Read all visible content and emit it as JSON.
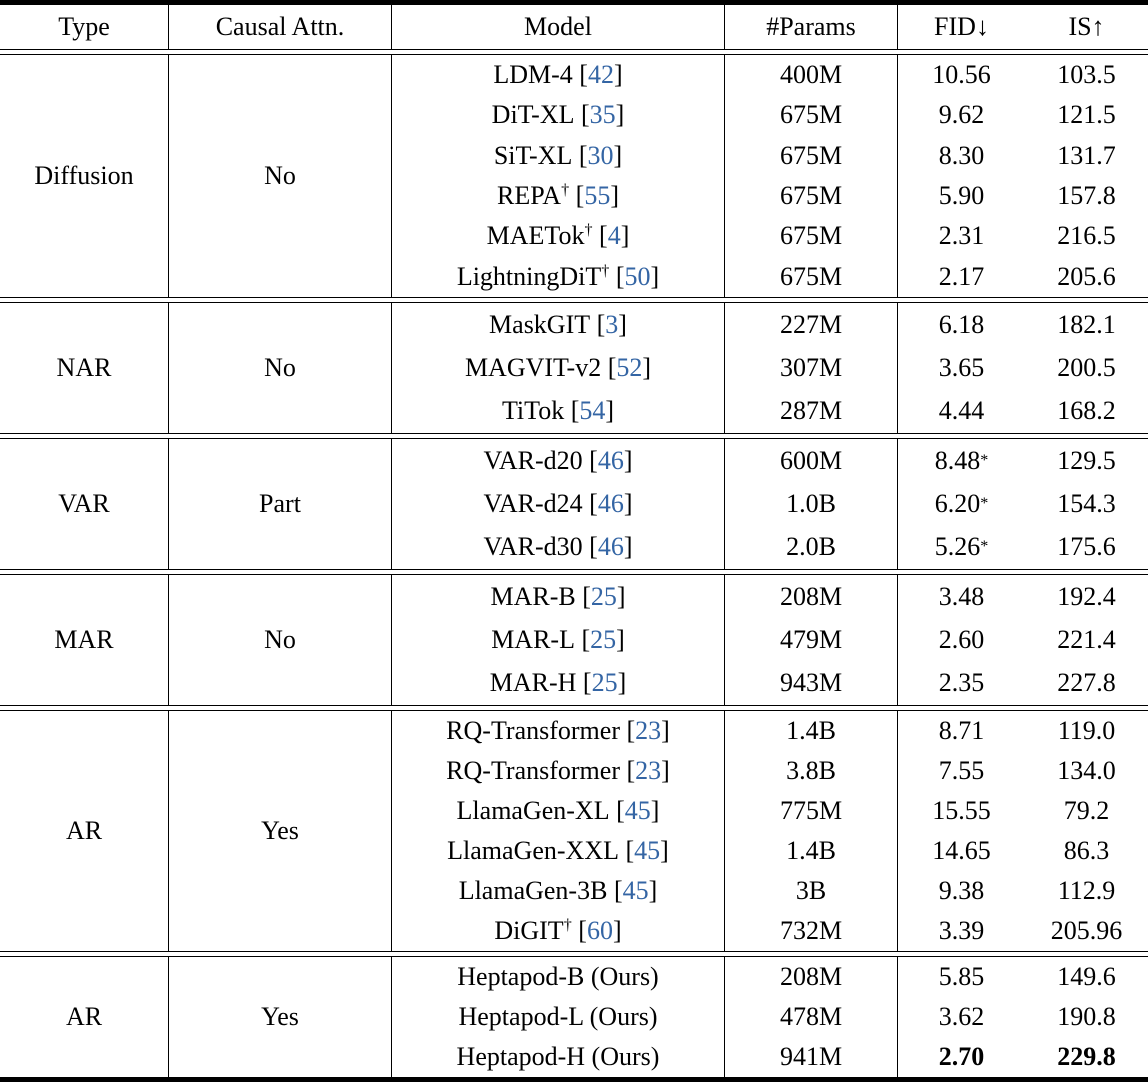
{
  "table": {
    "header": {
      "columns": [
        "Type",
        "Causal Attn.",
        "Model",
        "#Params",
        "FID↓",
        "IS↑"
      ]
    },
    "colors": {
      "citation_blue": "#3465a4",
      "text": "#000000",
      "rule": "#000000",
      "background": "#ffffff"
    },
    "sections": [
      {
        "type": "Diffusion",
        "causal_attn": "No",
        "rows": [
          {
            "model": "LDM-4",
            "dagger": false,
            "cite": "42",
            "params": "400M",
            "fid": "10.56",
            "fid_star": false,
            "fid_bold": false,
            "is": "103.5",
            "is_bold": false
          },
          {
            "model": "DiT-XL",
            "dagger": false,
            "cite": "35",
            "params": "675M",
            "fid": "9.62",
            "fid_star": false,
            "fid_bold": false,
            "is": "121.5",
            "is_bold": false
          },
          {
            "model": "SiT-XL",
            "dagger": false,
            "cite": "30",
            "params": "675M",
            "fid": "8.30",
            "fid_star": false,
            "fid_bold": false,
            "is": "131.7",
            "is_bold": false
          },
          {
            "model": "REPA",
            "dagger": true,
            "cite": "55",
            "params": "675M",
            "fid": "5.90",
            "fid_star": false,
            "fid_bold": false,
            "is": "157.8",
            "is_bold": false
          },
          {
            "model": "MAETok",
            "dagger": true,
            "cite": "4",
            "params": "675M",
            "fid": "2.31",
            "fid_star": false,
            "fid_bold": false,
            "is": "216.5",
            "is_bold": false
          },
          {
            "model": "LightningDiT",
            "dagger": true,
            "cite": "50",
            "params": "675M",
            "fid": "2.17",
            "fid_star": false,
            "fid_bold": false,
            "is": "205.6",
            "is_bold": false
          }
        ]
      },
      {
        "type": "NAR",
        "causal_attn": "No",
        "rows": [
          {
            "model": "MaskGIT",
            "dagger": false,
            "cite": "3",
            "params": "227M",
            "fid": "6.18",
            "fid_star": false,
            "fid_bold": false,
            "is": "182.1",
            "is_bold": false
          },
          {
            "model": "MAGVIT-v2",
            "dagger": false,
            "cite": "52",
            "params": "307M",
            "fid": "3.65",
            "fid_star": false,
            "fid_bold": false,
            "is": "200.5",
            "is_bold": false
          },
          {
            "model": "TiTok",
            "dagger": false,
            "cite": "54",
            "params": "287M",
            "fid": "4.44",
            "fid_star": false,
            "fid_bold": false,
            "is": "168.2",
            "is_bold": false
          }
        ]
      },
      {
        "type": "VAR",
        "causal_attn": "Part",
        "rows": [
          {
            "model": "VAR-d20",
            "dagger": false,
            "cite": "46",
            "params": "600M",
            "fid": "8.48",
            "fid_star": true,
            "fid_bold": false,
            "is": "129.5",
            "is_bold": false
          },
          {
            "model": "VAR-d24",
            "dagger": false,
            "cite": "46",
            "params": "1.0B",
            "fid": "6.20",
            "fid_star": true,
            "fid_bold": false,
            "is": "154.3",
            "is_bold": false
          },
          {
            "model": "VAR-d30",
            "dagger": false,
            "cite": "46",
            "params": "2.0B",
            "fid": "5.26",
            "fid_star": true,
            "fid_bold": false,
            "is": "175.6",
            "is_bold": false
          }
        ]
      },
      {
        "type": "MAR",
        "causal_attn": "No",
        "rows": [
          {
            "model": "MAR-B",
            "dagger": false,
            "cite": "25",
            "params": "208M",
            "fid": "3.48",
            "fid_star": false,
            "fid_bold": false,
            "is": "192.4",
            "is_bold": false
          },
          {
            "model": "MAR-L",
            "dagger": false,
            "cite": "25",
            "params": "479M",
            "fid": "2.60",
            "fid_star": false,
            "fid_bold": false,
            "is": "221.4",
            "is_bold": false
          },
          {
            "model": "MAR-H",
            "dagger": false,
            "cite": "25",
            "params": "943M",
            "fid": "2.35",
            "fid_star": false,
            "fid_bold": false,
            "is": "227.8",
            "is_bold": false
          }
        ]
      },
      {
        "type": "AR",
        "causal_attn": "Yes",
        "rows": [
          {
            "model": "RQ-Transformer",
            "dagger": false,
            "cite": "23",
            "params": "1.4B",
            "fid": "8.71",
            "fid_star": false,
            "fid_bold": false,
            "is": "119.0",
            "is_bold": false
          },
          {
            "model": "RQ-Transformer",
            "dagger": false,
            "cite": "23",
            "params": "3.8B",
            "fid": "7.55",
            "fid_star": false,
            "fid_bold": false,
            "is": "134.0",
            "is_bold": false
          },
          {
            "model": "LlamaGen-XL",
            "dagger": false,
            "cite": "45",
            "params": "775M",
            "fid": "15.55",
            "fid_star": false,
            "fid_bold": false,
            "is": "79.2",
            "is_bold": false
          },
          {
            "model": "LlamaGen-XXL",
            "dagger": false,
            "cite": "45",
            "params": "1.4B",
            "fid": "14.65",
            "fid_star": false,
            "fid_bold": false,
            "is": "86.3",
            "is_bold": false
          },
          {
            "model": "LlamaGen-3B",
            "dagger": false,
            "cite": "45",
            "params": "3B",
            "fid": "9.38",
            "fid_star": false,
            "fid_bold": false,
            "is": "112.9",
            "is_bold": false
          },
          {
            "model": "DiGIT",
            "dagger": true,
            "cite": "60",
            "params": "732M",
            "fid": "3.39",
            "fid_star": false,
            "fid_bold": false,
            "is": "205.96",
            "is_bold": false
          }
        ]
      },
      {
        "type": "AR",
        "causal_attn": "Yes",
        "rows": [
          {
            "model": "Heptapod-B (Ours)",
            "dagger": false,
            "cite": null,
            "params": "208M",
            "fid": "5.85",
            "fid_star": false,
            "fid_bold": false,
            "is": "149.6",
            "is_bold": false
          },
          {
            "model": "Heptapod-L (Ours)",
            "dagger": false,
            "cite": null,
            "params": "478M",
            "fid": "3.62",
            "fid_star": false,
            "fid_bold": false,
            "is": "190.8",
            "is_bold": false
          },
          {
            "model": "Heptapod-H (Ours)",
            "dagger": false,
            "cite": null,
            "params": "941M",
            "fid": "2.70",
            "fid_star": false,
            "fid_bold": true,
            "is": "229.8",
            "is_bold": true
          }
        ]
      }
    ]
  }
}
